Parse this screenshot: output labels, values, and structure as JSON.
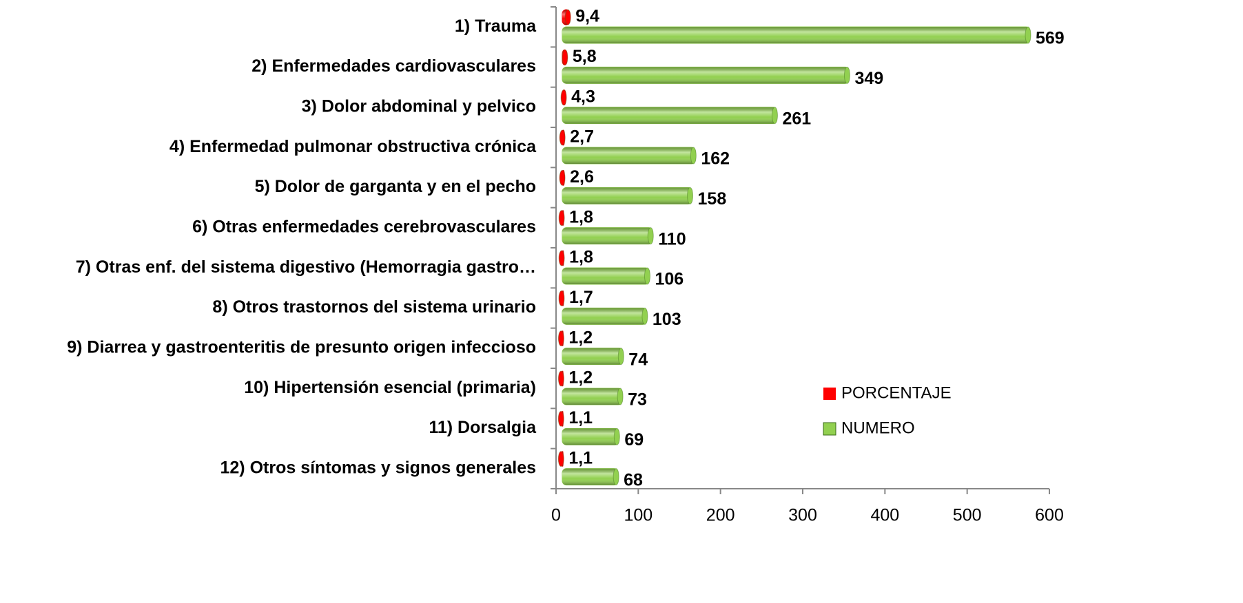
{
  "chart_data": {
    "type": "bar",
    "orientation": "horizontal",
    "categories": [
      "1) Trauma",
      "2) Enfermedades cardiovasculares",
      "3) Dolor abdominal y pelvico",
      "4) Enfermedad pulmonar obstructiva crónica",
      "5) Dolor de garganta y en el pecho",
      "6) Otras enfermedades cerebrovasculares",
      "7) Otras enf. del sistema digestivo (Hemorragia gastro…",
      "8) Otros trastornos del sistema urinario",
      "9) Diarrea y gastroenteritis de presunto origen infeccioso",
      "10) Hipertensión esencial (primaria)",
      "11) Dorsalgia",
      "12) Otros síntomas y signos generales"
    ],
    "series": [
      {
        "name": "PORCENTAJE",
        "color": "#ff0000",
        "values": [
          9.4,
          5.8,
          4.3,
          2.7,
          2.6,
          1.8,
          1.8,
          1.7,
          1.2,
          1.2,
          1.1,
          1.1
        ],
        "value_labels": [
          "9,4",
          "5,8",
          "4,3",
          "2,7",
          "2,6",
          "1,8",
          "1,8",
          "1,7",
          "1,2",
          "1,2",
          "1,1",
          "1,1"
        ]
      },
      {
        "name": "NUMERO",
        "color": "#92d050",
        "values": [
          569,
          349,
          261,
          162,
          158,
          110,
          106,
          103,
          74,
          73,
          69,
          68
        ]
      }
    ],
    "xlim": [
      0,
      600
    ],
    "xticks": [
      0,
      100,
      200,
      300,
      400,
      500,
      600
    ],
    "legend": "lower right",
    "grid": false
  }
}
